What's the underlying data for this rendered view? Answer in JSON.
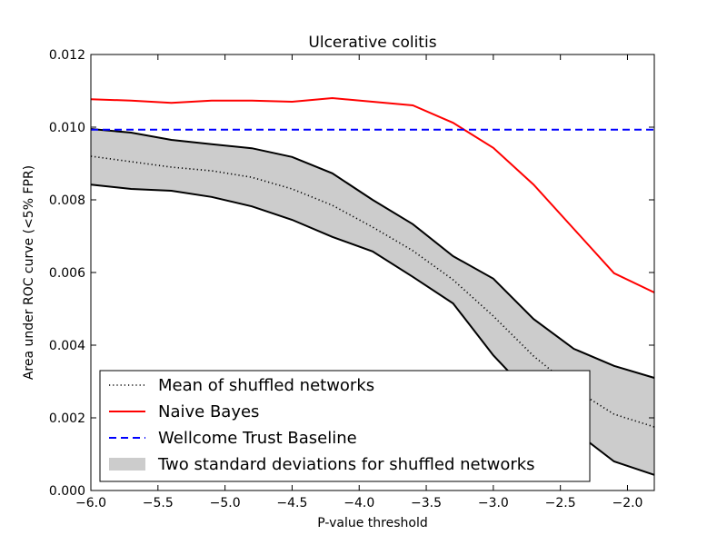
{
  "chart_data": {
    "type": "line",
    "title": "Ulcerative colitis",
    "xlabel": "P-value threshold",
    "ylabel": "Area under ROC curve (<5% FPR)",
    "xlim": [
      -6.0,
      -1.8
    ],
    "ylim": [
      0.0,
      0.012
    ],
    "x_ticks": [
      -6.0,
      -5.5,
      -5.0,
      -4.5,
      -4.0,
      -3.5,
      -3.0,
      -2.5,
      -2.0
    ],
    "x_tick_labels": [
      "−6.0",
      "−5.5",
      "−5.0",
      "−4.5",
      "−4.0",
      "−3.5",
      "−3.0",
      "−2.5",
      "−2.0"
    ],
    "y_ticks": [
      0.0,
      0.002,
      0.004,
      0.006,
      0.008,
      0.01,
      0.012
    ],
    "y_tick_labels": [
      "0.000",
      "0.002",
      "0.004",
      "0.006",
      "0.008",
      "0.010",
      "0.012"
    ],
    "grid": false,
    "legend_position": "lower-left",
    "x": [
      -6.0,
      -5.7,
      -5.4,
      -5.1,
      -4.8,
      -4.5,
      -4.2,
      -3.9,
      -3.6,
      -3.3,
      -3.0,
      -2.7,
      -2.4,
      -2.1,
      -1.8
    ],
    "series": [
      {
        "name": "Mean of shuffled networks",
        "style": "dotted",
        "color": "#000000",
        "values": [
          0.0092,
          0.00905,
          0.0089,
          0.0088,
          0.00862,
          0.0083,
          0.00785,
          0.00725,
          0.0066,
          0.0058,
          0.0048,
          0.0037,
          0.0028,
          0.0021,
          0.00175
        ]
      },
      {
        "name": "Naive Bayes",
        "style": "solid",
        "color": "#ff0000",
        "values": [
          0.01077,
          0.01073,
          0.01067,
          0.01073,
          0.01073,
          0.0107,
          0.0108,
          0.0107,
          0.0106,
          0.01012,
          0.00943,
          0.00842,
          0.0072,
          0.00598,
          0.00545
        ]
      },
      {
        "name": "Wellcome Trust Baseline",
        "style": "dashed",
        "color": "#0000ff",
        "values": [
          0.00993,
          0.00993,
          0.00993,
          0.00993,
          0.00993,
          0.00993,
          0.00993,
          0.00993,
          0.00993,
          0.00993,
          0.00993,
          0.00993,
          0.00993,
          0.00993,
          0.00993
        ]
      }
    ],
    "band": {
      "name": "Two standard deviations for shuffled networks",
      "color": "#cccccc",
      "edge_color": "#000000",
      "upper": [
        0.00995,
        0.00985,
        0.00965,
        0.00953,
        0.00942,
        0.00918,
        0.00873,
        0.008,
        0.00733,
        0.00645,
        0.00583,
        0.00472,
        0.0039,
        0.00343,
        0.0031
      ],
      "lower": [
        0.00842,
        0.0083,
        0.00825,
        0.00808,
        0.00782,
        0.00745,
        0.00698,
        0.00658,
        0.00588,
        0.00515,
        0.00372,
        0.00255,
        0.00165,
        0.0008,
        0.00043
      ]
    }
  }
}
